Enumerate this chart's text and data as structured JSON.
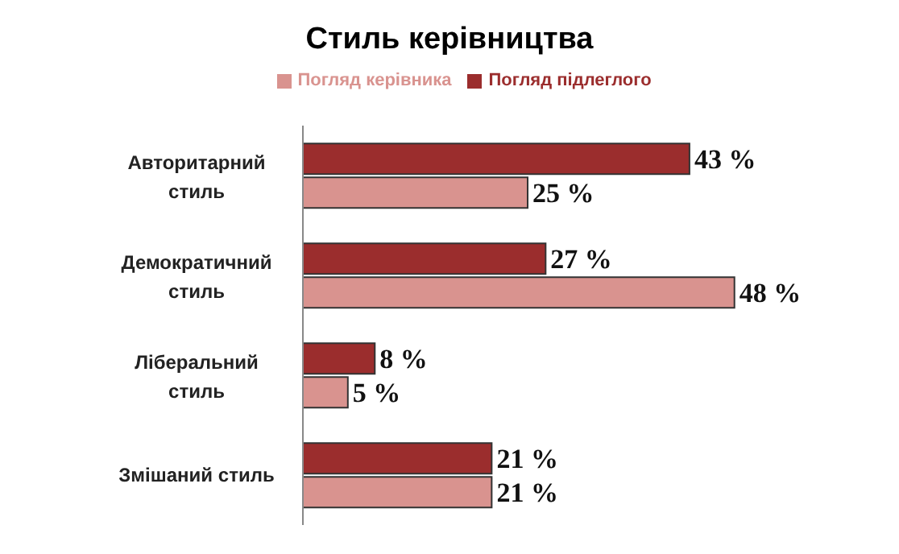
{
  "chart_data": {
    "type": "bar",
    "orientation": "horizontal",
    "title": "Стиль керівництва",
    "categories": [
      "Авторитарний стиль",
      "Демократичний стиль",
      "Ліберальний стиль",
      "Змішаний стиль"
    ],
    "series": [
      {
        "name": "Погляд підлеглого",
        "color": "#9b2d2d",
        "values": [
          43,
          27,
          8,
          21
        ],
        "value_labels": [
          "43 %",
          "27 %",
          "8 %",
          "21 %"
        ]
      },
      {
        "name": "Погляд керівника",
        "color": "#d9938f",
        "values": [
          25,
          48,
          5,
          21
        ],
        "value_labels": [
          "25 %",
          "48 %",
          "5 %",
          "21 %"
        ]
      }
    ],
    "legend": "top",
    "grid": false,
    "tick_labels": "y"
  }
}
